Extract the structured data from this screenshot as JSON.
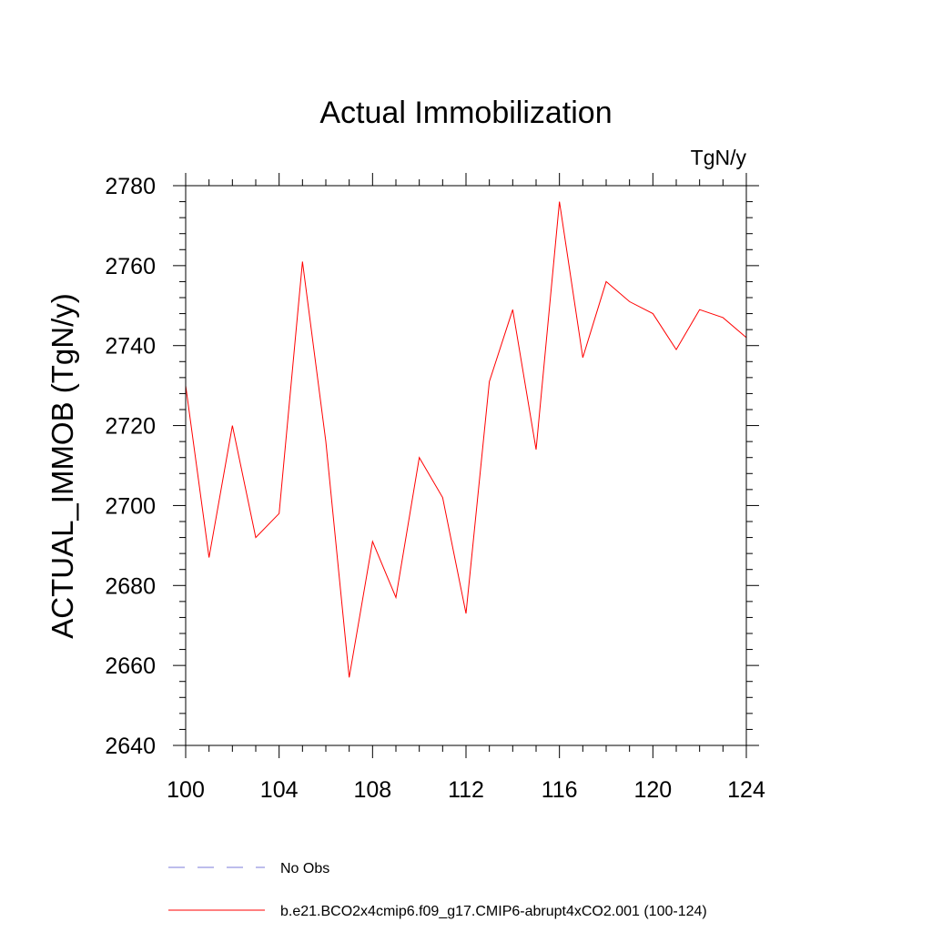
{
  "chart_data": {
    "type": "line",
    "title": "Actual Immobilization",
    "units": "TgN/y",
    "xlabel": "",
    "ylabel": "ACTUAL_IMMOB  (TgN/y)",
    "xlim": [
      100,
      124
    ],
    "ylim": [
      2640,
      2780
    ],
    "x_ticks": [
      100,
      104,
      108,
      112,
      116,
      120,
      124
    ],
    "x_tick_labels": [
      "100",
      "104",
      "108",
      "112",
      "116",
      "120",
      "124"
    ],
    "x_minor_step": 1,
    "y_ticks": [
      2640,
      2660,
      2680,
      2700,
      2720,
      2740,
      2760,
      2780
    ],
    "y_tick_labels": [
      "2640",
      "2660",
      "2680",
      "2700",
      "2720",
      "2740",
      "2760",
      "2780"
    ],
    "y_minor_step": 4,
    "grid": false,
    "legend_position": "bottom",
    "x": [
      100,
      101,
      102,
      103,
      104,
      105,
      106,
      107,
      108,
      109,
      110,
      111,
      112,
      113,
      114,
      115,
      116,
      117,
      118,
      119,
      120,
      121,
      122,
      123,
      124
    ],
    "series": [
      {
        "name": "b.e21.BCO2x4cmip6.f09_g17.CMIP6-abrupt4xCO2.001 (100-124)",
        "color": "#ff0000",
        "dash": "solid",
        "values": [
          2730,
          2687,
          2720,
          2692,
          2698,
          2761,
          2716,
          2657,
          2691,
          2677,
          2712,
          2702,
          2673,
          2731,
          2749,
          2714,
          2776,
          2737,
          2756,
          2751,
          2748,
          2739,
          2749,
          2747,
          2742
        ]
      }
    ],
    "legend": [
      {
        "label": "No Obs",
        "color": "#7b7bd8",
        "dash": "dashed"
      },
      {
        "label": "b.e21.BCO2x4cmip6.f09_g17.CMIP6-abrupt4xCO2.001 (100-124)",
        "color": "#ff0000",
        "dash": "solid"
      }
    ]
  }
}
